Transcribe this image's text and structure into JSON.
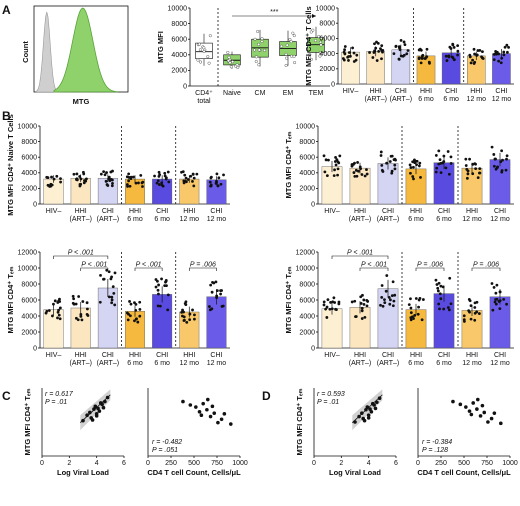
{
  "panels": {
    "A": "A",
    "B": "B",
    "C": "C",
    "D": "D"
  },
  "colors": {
    "hiv_neg": "#fdefd2",
    "hhi_art": "#fbe6bf",
    "chi_art": "#d4d4f3",
    "hhi_6mo": "#f6b940",
    "chi_6mo": "#5a4be0",
    "hhi_12mo": "#f8c86a",
    "chi_12mo": "#6a5ce8",
    "green": "#8fd16a",
    "grey_hist": "#cfcfcf",
    "band": "#bdbdbd"
  },
  "histogram": {
    "ylabel": "Count",
    "xlabel": "MTG"
  },
  "chart_data": [
    {
      "id": "A-box",
      "type": "box",
      "ylabel": "MTG MFI",
      "ylim": [
        0,
        10000
      ],
      "yticks": [
        "0",
        "2000",
        "4000",
        "6000",
        "8000",
        "10000"
      ],
      "categories": [
        "CD4⁺ total",
        "Naive",
        "CM",
        "EM",
        "TEM"
      ],
      "boxes": [
        {
          "q1": 3500,
          "median": 4400,
          "q3": 5500,
          "min": 2600,
          "max": 6700
        },
        {
          "q1": 2700,
          "median": 3300,
          "q3": 4000,
          "min": 2200,
          "max": 4400
        },
        {
          "q1": 3700,
          "median": 4900,
          "q3": 6000,
          "min": 2500,
          "max": 7200
        },
        {
          "q1": 3900,
          "median": 4800,
          "q3": 5700,
          "min": 2600,
          "max": 7100
        },
        {
          "q1": 4300,
          "median": 5300,
          "q3": 6200,
          "min": 3300,
          "max": 7600
        }
      ],
      "sig": "***"
    },
    {
      "id": "A-bar",
      "type": "bar",
      "ylabel": "MTG MFI CD4⁺ T Cells",
      "ylim": [
        0,
        10000
      ],
      "yticks": [
        "0",
        "2000",
        "4000",
        "6000",
        "8000",
        "10000"
      ],
      "categories": [
        "HIV–",
        "HHI (ART–)",
        "CHI (ART–)",
        "HHI 6 mo",
        "CHI 6 mo",
        "HHI 12 mo",
        "CHI 12 mo"
      ],
      "values": [
        4200,
        4300,
        4500,
        3700,
        4100,
        3700,
        4000
      ]
    },
    {
      "id": "B-naive",
      "type": "bar",
      "ylabel": "MTG MFI CD4⁺ Naive T Cells",
      "ylim": [
        0,
        10000
      ],
      "yticks": [
        "0",
        "2000",
        "4000",
        "6000",
        "8000",
        "10000"
      ],
      "categories": [
        "HIV–",
        "HHI (ART–)",
        "CHI (ART–)",
        "HHI 6 mo",
        "CHI 6 mo",
        "HHI 12 mo",
        "CHI 12 mo"
      ],
      "values": [
        3200,
        3300,
        3300,
        3200,
        3200,
        3200,
        3100
      ]
    },
    {
      "id": "B-cm",
      "type": "bar",
      "ylabel": "MTG MFI CD4⁺ Tₑₘ",
      "ylim": [
        0,
        10000
      ],
      "yticks": [
        "0",
        "2000",
        "4000",
        "6000",
        "8000",
        "10000"
      ],
      "categories": [
        "HIV–",
        "HHI (ART–)",
        "CHI (ART–)",
        "HHI 6 mo",
        "CHI 6 mo",
        "HHI 12 mo",
        "CHI 12 mo"
      ],
      "values": [
        4800,
        4600,
        5200,
        4500,
        5300,
        4600,
        5700
      ]
    },
    {
      "id": "B-tem1",
      "type": "bar",
      "ylabel": "MTG MFI CD4⁺ Tₑₘ",
      "ylim": [
        0,
        12000
      ],
      "yticks": [
        "0",
        "2000",
        "4000",
        "6000",
        "8000",
        "10000",
        "12000"
      ],
      "categories": [
        "HIV–",
        "HHI (ART–)",
        "CHI (ART–)",
        "HHI 6 mo",
        "CHI 6 mo",
        "HHI 12 mo",
        "CHI 12 mo"
      ],
      "values": [
        4800,
        5000,
        7500,
        4600,
        6700,
        4500,
        6400
      ],
      "brackets": [
        {
          "from": 0,
          "to": 2,
          "label": "P < .001",
          "level": 2
        },
        {
          "from": 1,
          "to": 2,
          "label": "P < .001",
          "level": 1
        },
        {
          "from": 3,
          "to": 4,
          "label": "P < .001",
          "level": 1
        },
        {
          "from": 5,
          "to": 6,
          "label": "P = .006",
          "level": 1
        }
      ]
    },
    {
      "id": "B-tem2",
      "type": "bar",
      "ylabel": "MTG MFI CD4⁺ Tₑₘ",
      "ylim": [
        0,
        12000
      ],
      "yticks": [
        "0",
        "2000",
        "4000",
        "6000",
        "8000",
        "10000",
        "12000"
      ],
      "categories": [
        "HIV–",
        "HHI (ART–)",
        "CHI (ART–)",
        "HHI 6 mo",
        "CHI 6 mo",
        "HHI 12 mo",
        "CHI 12 mo"
      ],
      "values": [
        4900,
        5100,
        7400,
        4800,
        6800,
        4700,
        6400
      ],
      "brackets": [
        {
          "from": 0,
          "to": 2,
          "label": "P < .001",
          "level": 2
        },
        {
          "from": 1,
          "to": 2,
          "label": "P < .001",
          "level": 1
        },
        {
          "from": 3,
          "to": 4,
          "label": "P = .006",
          "level": 1
        },
        {
          "from": 5,
          "to": 6,
          "label": "P = .006",
          "level": 1
        }
      ]
    },
    {
      "id": "C-viral",
      "type": "scatter",
      "ylabel": "MTG MFI CD4⁺ Tₑₘ",
      "xlabel": "Log Viral Load",
      "xlim": [
        0,
        6
      ],
      "ylim": [
        0,
        10000
      ],
      "xticks": [
        "0",
        "2",
        "4",
        "6"
      ],
      "annotation": [
        "r = 0.617",
        "P = .01"
      ],
      "points": [
        [
          3.0,
          5200
        ],
        [
          3.3,
          6000
        ],
        [
          3.5,
          6400
        ],
        [
          3.6,
          5600
        ],
        [
          3.8,
          6900
        ],
        [
          3.9,
          7300
        ],
        [
          4.0,
          6200
        ],
        [
          4.1,
          7000
        ],
        [
          4.2,
          6600
        ],
        [
          4.3,
          7800
        ],
        [
          4.4,
          7600
        ],
        [
          4.5,
          7100
        ],
        [
          4.6,
          8000
        ],
        [
          4.8,
          8600
        ],
        [
          4.0,
          5900
        ],
        [
          3.7,
          5300
        ]
      ]
    },
    {
      "id": "C-count",
      "type": "scatter",
      "xlabel": "CD4 T cell Count, Cells/μL",
      "xlim": [
        0,
        1000
      ],
      "ylim": [
        0,
        10000
      ],
      "xticks": [
        "0",
        "250",
        "500",
        "750",
        "1000"
      ],
      "annotation": [
        "r = -0.482",
        "P = .051"
      ],
      "points": [
        [
          380,
          8000
        ],
        [
          460,
          7500
        ],
        [
          520,
          7200
        ],
        [
          560,
          6500
        ],
        [
          600,
          7700
        ],
        [
          640,
          6800
        ],
        [
          680,
          5800
        ],
        [
          700,
          7300
        ],
        [
          720,
          6300
        ],
        [
          760,
          4900
        ],
        [
          800,
          5400
        ],
        [
          830,
          6200
        ],
        [
          900,
          4700
        ],
        [
          650,
          8300
        ],
        [
          580,
          6000
        ]
      ]
    },
    {
      "id": "D-viral",
      "type": "scatter",
      "ylabel": "MTG MFI CD4⁺ Tₑₘ",
      "xlabel": "Log Viral Load",
      "xlim": [
        0,
        6
      ],
      "ylim": [
        0,
        10000
      ],
      "xticks": [
        "0",
        "2",
        "4",
        "6"
      ],
      "annotation": [
        "r = 0.593",
        "P = .01"
      ],
      "points": [
        [
          3.0,
          5000
        ],
        [
          3.3,
          5800
        ],
        [
          3.5,
          6300
        ],
        [
          3.6,
          5500
        ],
        [
          3.8,
          6800
        ],
        [
          3.9,
          7200
        ],
        [
          4.0,
          6000
        ],
        [
          4.1,
          6900
        ],
        [
          4.2,
          6500
        ],
        [
          4.3,
          7700
        ],
        [
          4.4,
          7500
        ],
        [
          4.5,
          7000
        ],
        [
          4.6,
          7900
        ],
        [
          4.8,
          8500
        ],
        [
          4.0,
          5600
        ],
        [
          3.7,
          5200
        ]
      ]
    },
    {
      "id": "D-count",
      "type": "scatter",
      "xlabel": "CD4 T cell Count, Cells/μL",
      "xlim": [
        0,
        1000
      ],
      "ylim": [
        0,
        10000
      ],
      "xticks": [
        "0",
        "250",
        "500",
        "750",
        "1000"
      ],
      "annotation": [
        "r = -0.384",
        "P = .128"
      ],
      "points": [
        [
          380,
          8000
        ],
        [
          460,
          7600
        ],
        [
          520,
          7200
        ],
        [
          560,
          6600
        ],
        [
          600,
          7800
        ],
        [
          640,
          6900
        ],
        [
          680,
          5900
        ],
        [
          700,
          7400
        ],
        [
          720,
          6400
        ],
        [
          760,
          5000
        ],
        [
          800,
          5500
        ],
        [
          830,
          6300
        ],
        [
          900,
          4800
        ],
        [
          650,
          8300
        ],
        [
          580,
          6100
        ]
      ]
    }
  ]
}
